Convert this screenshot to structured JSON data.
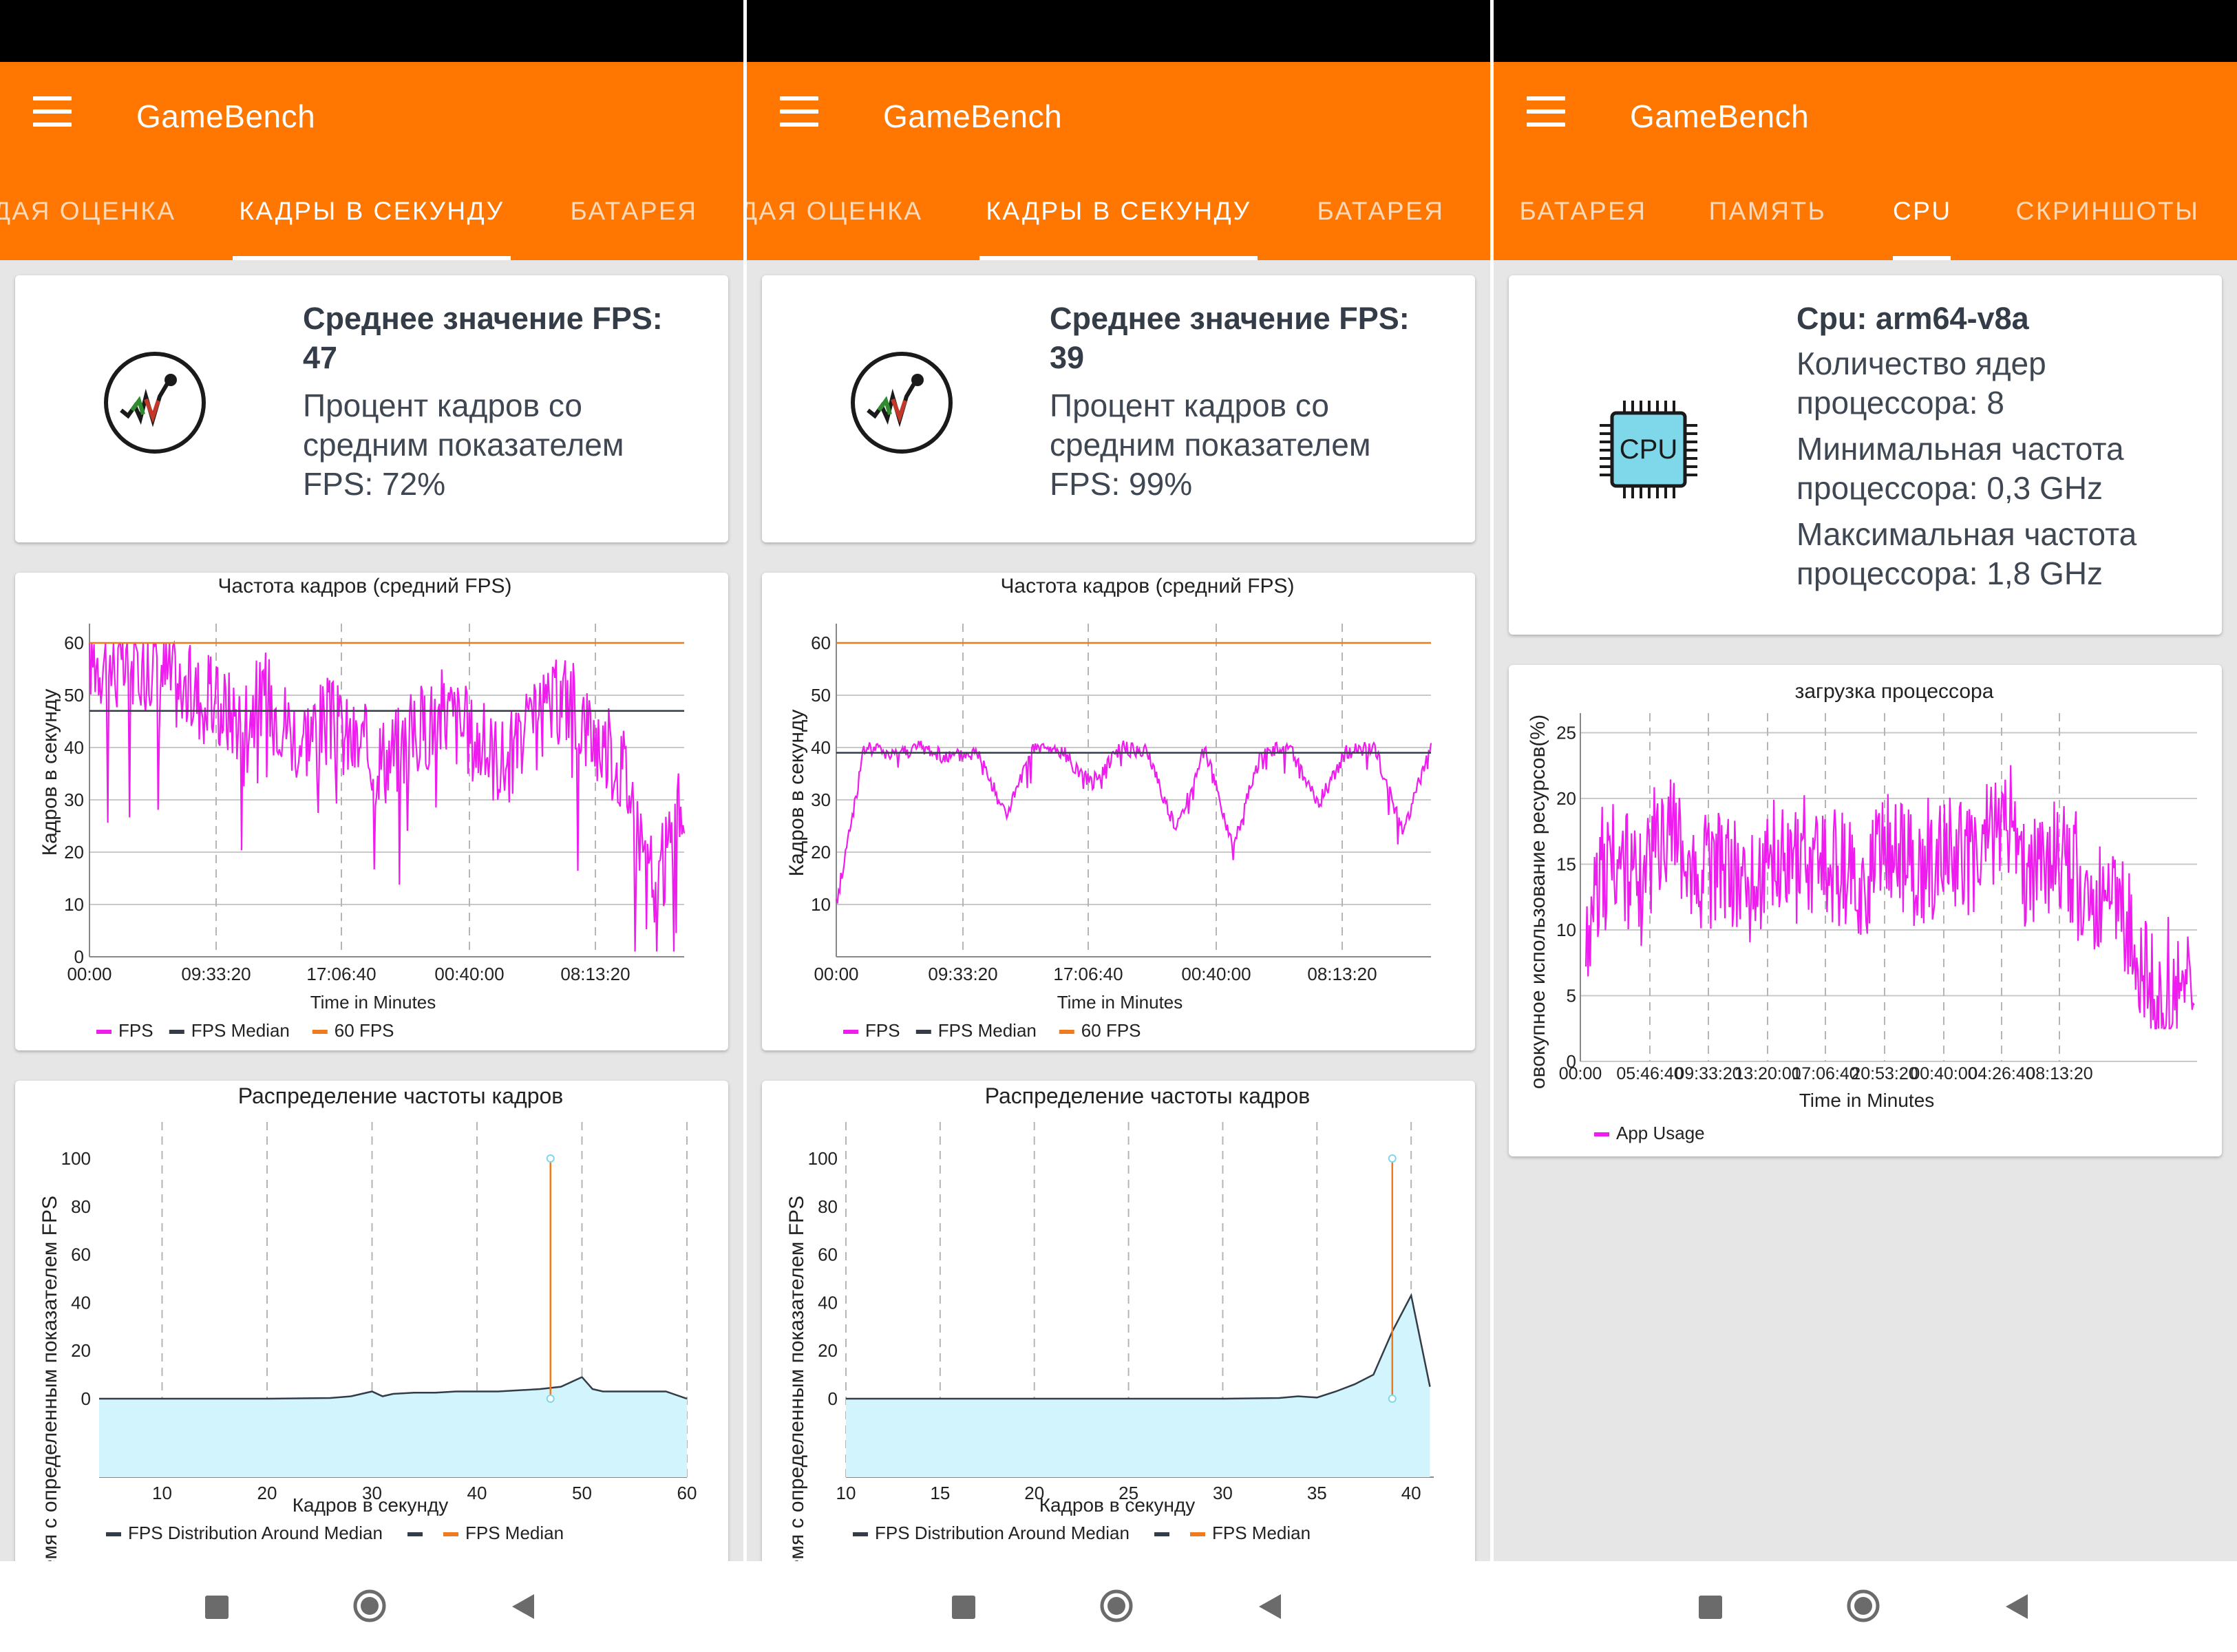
{
  "app": {
    "title": "GameBench"
  },
  "colors": {
    "accent": "#ff7600",
    "fps": "#ee1cee",
    "median": "#333c47",
    "target": "#f07b1e",
    "fill": "#d2f4fc"
  },
  "screens": [
    {
      "tabs": [
        {
          "label": "ДАЯ ОЦЕНКА"
        },
        {
          "label": "КАДРЫ В СЕКУНДУ",
          "active": true
        },
        {
          "label": "БАТАРЕЯ"
        }
      ],
      "summary": {
        "title_line1": "Среднее значение FPS:",
        "title_line2": "47",
        "line1": "Процент кадров со",
        "line2": "средним показателем",
        "line3": "FPS: 72%"
      },
      "fps_chart": {
        "title": "Частота кадров (средний FPS)",
        "ylabel": "Кадров в секунду",
        "xlabel": "Time in Minutes",
        "x_ticks": [
          "00:00",
          "09:33:20",
          "17:06:40",
          "00:40:00",
          "08:13:20"
        ],
        "y_ticks": [
          "0",
          "10",
          "20",
          "30",
          "40",
          "50",
          "60"
        ],
        "legend": [
          "FPS",
          "FPS Median",
          "60 FPS"
        ]
      },
      "dist_chart": {
        "title": "Распределение частоты кадров",
        "ylabel": "ремя с определенным показателем FPS",
        "xlabel": "Кадров в секунду",
        "x_ticks": [
          "10",
          "20",
          "30",
          "40",
          "50",
          "60"
        ],
        "y_ticks": [
          "0",
          "20",
          "40",
          "60",
          "80",
          "100"
        ],
        "legend": [
          "FPS Distribution Around Median",
          "FPS Median"
        ]
      }
    },
    {
      "tabs": [
        {
          "label": "ДАЯ ОЦЕНКА"
        },
        {
          "label": "КАДРЫ В СЕКУНДУ",
          "active": true
        },
        {
          "label": "БАТАРЕЯ"
        }
      ],
      "summary": {
        "title_line1": "Среднее значение FPS:",
        "title_line2": "39",
        "line1": "Процент кадров со",
        "line2": "средним показателем",
        "line3": "FPS: 99%"
      },
      "fps_chart": {
        "title": "Частота кадров (средний FPS)",
        "ylabel": "Кадров в секунду",
        "xlabel": "Time in Minutes",
        "x_ticks": [
          "00:00",
          "09:33:20",
          "17:06:40",
          "00:40:00",
          "08:13:20"
        ],
        "y_ticks": [
          "10",
          "20",
          "30",
          "40",
          "50",
          "60"
        ],
        "legend": [
          "FPS",
          "FPS Median",
          "60 FPS"
        ]
      },
      "dist_chart": {
        "title": "Распределение частоты кадров",
        "ylabel": "ремя с определенным показателем FPS",
        "xlabel": "Кадров в секунду",
        "x_ticks": [
          "10",
          "15",
          "20",
          "25",
          "30",
          "35",
          "40"
        ],
        "y_ticks": [
          "0",
          "20",
          "40",
          "60",
          "80",
          "100"
        ],
        "legend": [
          "FPS Distribution Around Median",
          "FPS Median"
        ]
      }
    },
    {
      "tabs": [
        {
          "label": "БАТАРЕЯ"
        },
        {
          "label": "ПАМЯТЬ"
        },
        {
          "label": "CPU",
          "active": true
        },
        {
          "label": "СКРИНШОТЫ"
        }
      ],
      "cpu_summary": {
        "icon_label": "CPU",
        "title": "Cpu: arm64-v8a",
        "line1": "Количество ядер",
        "line2": "процессора: 8",
        "line3": "Минимальная частота",
        "line4": "процессора: 0,3 GHz",
        "line5": "Максимальная частота",
        "line6": "процессора: 1,8 GHz"
      },
      "cpu_chart": {
        "title": "загрузка процессора",
        "ylabel": "овокупное использование ресурсов(%)",
        "xlabel": "Time in Minutes",
        "x_ticks": [
          "00:00",
          "05:46:40",
          "09:33:20",
          "13:20:00",
          "17:06:40",
          "20:53:20",
          "00:40:00",
          "04:26:40",
          "08:13:20"
        ],
        "y_ticks": [
          "0",
          "5",
          "10",
          "15",
          "20",
          "25"
        ],
        "legend": [
          "App Usage"
        ]
      }
    }
  ],
  "chart_data": [
    {
      "type": "line",
      "title": "Частота кадров (средний FPS)",
      "xlabel": "Time in Minutes",
      "ylabel": "Кадров в секунду",
      "ylim": [
        0,
        60
      ],
      "x_ticks": [
        "00:00",
        "09:33:20",
        "17:06:40",
        "00:40:00",
        "08:13:20"
      ],
      "series": [
        {
          "name": "FPS",
          "approx_values": [
            58,
            55,
            57,
            52,
            49,
            46,
            50,
            42,
            45,
            40,
            38,
            43,
            47,
            41,
            37,
            44,
            50,
            42,
            36,
            12,
            30
          ]
        },
        {
          "name": "FPS Median",
          "values": [
            47,
            47
          ]
        },
        {
          "name": "60 FPS",
          "values": [
            60,
            60
          ]
        }
      ]
    },
    {
      "type": "area",
      "title": "Распределение частоты кадров",
      "xlabel": "Кадров в секунду",
      "ylabel": "ремя с определенным показателем FPS",
      "xlim": [
        4,
        60
      ],
      "ylim": [
        0,
        100
      ],
      "series": [
        {
          "name": "FPS Distribution Around Median",
          "x": [
            4,
            10,
            20,
            26,
            28,
            30,
            31,
            32,
            34,
            36,
            38,
            40,
            42,
            44,
            46,
            48,
            50,
            51,
            52,
            54,
            56,
            58,
            60
          ],
          "values": [
            0,
            0,
            0,
            0.3,
            1,
            3,
            1,
            2,
            2.5,
            2.5,
            3,
            3,
            3,
            3.5,
            4,
            5,
            9,
            4,
            3,
            3,
            3,
            3,
            0
          ]
        },
        {
          "name": "FPS Median",
          "x": [
            47,
            47
          ],
          "values": [
            0,
            100
          ]
        }
      ]
    },
    {
      "type": "line",
      "title": "Частота кадров (средний FPS)",
      "xlabel": "Time in Minutes",
      "ylabel": "Кадров в секунду",
      "ylim": [
        10,
        60
      ],
      "x_ticks": [
        "00:00",
        "09:33:20",
        "17:06:40",
        "00:40:00",
        "08:13:20"
      ],
      "series": [
        {
          "name": "FPS",
          "approx_values": [
            10,
            40,
            39,
            40,
            38,
            39,
            27,
            40,
            39,
            33,
            40,
            39,
            24,
            40,
            21,
            39,
            40,
            29,
            39,
            40,
            24,
            40
          ]
        },
        {
          "name": "FPS Median",
          "values": [
            39,
            39
          ]
        },
        {
          "name": "60 FPS",
          "values": [
            60,
            60
          ]
        }
      ]
    },
    {
      "type": "area",
      "title": "Распределение частоты кадров",
      "xlabel": "Кадров в секунду",
      "ylabel": "ремя с определенным показателем FPS",
      "xlim": [
        10,
        41
      ],
      "ylim": [
        0,
        100
      ],
      "series": [
        {
          "name": "FPS Distribution Around Median",
          "x": [
            10,
            20,
            30,
            33,
            34,
            35,
            36,
            37,
            38,
            39,
            40,
            41
          ],
          "values": [
            0,
            0,
            0,
            0.3,
            1,
            0.5,
            3,
            6,
            10,
            28,
            43,
            5
          ]
        },
        {
          "name": "FPS Median",
          "x": [
            39,
            39
          ],
          "values": [
            0,
            100
          ]
        }
      ]
    },
    {
      "type": "line",
      "title": "загрузка процессора",
      "xlabel": "Time in Minutes",
      "ylabel": "овокупное использование ресурсов(%)",
      "ylim": [
        0,
        26
      ],
      "x_ticks": [
        "00:00",
        "05:46:40",
        "09:33:20",
        "13:20:00",
        "17:06:40",
        "20:53:20",
        "00:40:00",
        "04:26:40",
        "08:13:20"
      ],
      "series": [
        {
          "name": "App Usage",
          "approx_values": [
            10,
            16,
            13,
            18,
            14,
            15,
            13,
            16,
            14,
            15,
            13,
            17,
            14,
            16,
            15,
            19,
            14,
            16,
            13,
            12,
            7,
            4,
            6
          ]
        }
      ]
    }
  ]
}
